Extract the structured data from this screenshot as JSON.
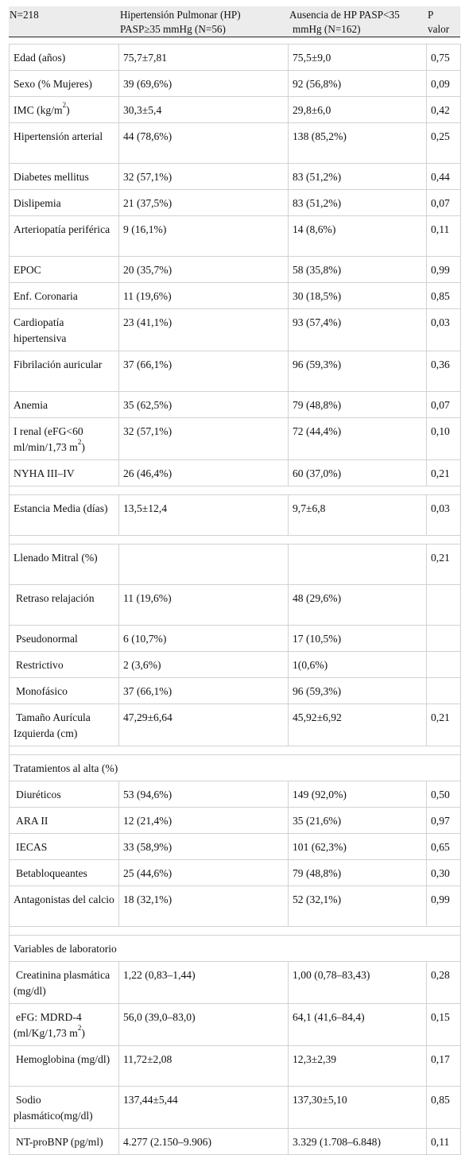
{
  "header": {
    "n": "N=218",
    "hp_line1": "Hipertensión Pulmonar (HP)",
    "hp_line2": "PASP≥35 mmHg (N=56)",
    "nohp_line1": "Ausencia de HP PASP<35",
    "nohp_line2": "mmHg (N=162)",
    "p_line1": "P",
    "p_line2": "valor"
  },
  "rows": [
    {
      "label": "Edad (años)",
      "hp": "75,7±7,81",
      "nohp": "75,5±9,0",
      "p": "0,75"
    },
    {
      "label": "Sexo (% Mujeres)",
      "hp": "39 (69,6%)",
      "nohp": "92 (56,8%)",
      "p": "0,09"
    },
    {
      "label": "IMC (kg/m",
      "sup": "2",
      "label_end": ")",
      "hp": "30,3±5,4",
      "nohp": "29,8±6,0",
      "p": "0,42"
    },
    {
      "label": "Hipertensión arterial",
      "hp": "44 (78,6%)",
      "nohp": "138 (85,2%)",
      "p": "0,25"
    },
    {
      "label": "Diabetes mellitus",
      "hp": "32 (57,1%)",
      "nohp": "83 (51,2%)",
      "p": "0,44"
    },
    {
      "label": "Dislipemia",
      "hp": "21 (37,5%)",
      "nohp": "83 (51,2%)",
      "p": "0,07"
    },
    {
      "label": "Arteriopatía periférica",
      "hp": "9 (16,1%)",
      "nohp": "14 (8,6%)",
      "p": "0,11"
    },
    {
      "label": "EPOC",
      "hp": "20 (35,7%)",
      "nohp": "58 (35,8%)",
      "p": "0,99"
    },
    {
      "label": "Enf. Coronaria",
      "hp": "11 (19,6%)",
      "nohp": "30 (18,5%)",
      "p": "0,85"
    },
    {
      "label": "Cardiopatía hipertensiva",
      "hp": "23 (41,1%)",
      "nohp": "93 (57,4%)",
      "p": "0,03"
    },
    {
      "label": "Fibrilación auricular",
      "hp": "37 (66,1%)",
      "nohp": "96 (59,3%)",
      "p": "0,36"
    },
    {
      "label": "Anemia",
      "hp": "35 (62,5%)",
      "nohp": "79 (48,8%)",
      "p": "0,07"
    },
    {
      "label": "I renal (eFG<60 ml/min/1,73 m",
      "sup": "2",
      "label_end": ")",
      "hp": "32 (57,1%)",
      "nohp": "72 (44,4%)",
      "p": "0,10"
    },
    {
      "label": "NYHA III–IV",
      "hp": "26 (46,4%)",
      "nohp": "60 (37,0%)",
      "p": "0,21"
    },
    {
      "gap": true
    },
    {
      "label": "Estancia Media (días)",
      "hp": "13,5±12,4",
      "nohp": "9,7±6,8",
      "p": "0,03"
    },
    {
      "gap": true
    },
    {
      "label": "Llenado Mitral (%)",
      "hp": "",
      "nohp": "",
      "p": "0,21"
    },
    {
      "label": "Retraso relajación",
      "indent": true,
      "hp": "11 (19,6%)",
      "nohp": "48 (29,6%)",
      "p": ""
    },
    {
      "label": "Pseudonormal",
      "indent": true,
      "hp": "6 (10,7%)",
      "nohp": "17 (10,5%)",
      "p": ""
    },
    {
      "label": "Restrictivo",
      "indent": true,
      "hp": "2 (3,6%)",
      "nohp": "1(0,6%)",
      "p": ""
    },
    {
      "label": "Monofásico",
      "indent": true,
      "hp": "37 (66,1%)",
      "nohp": "96 (59,3%)",
      "p": ""
    },
    {
      "label": "Tamaño Aurícula Izquierda (cm)",
      "indent": true,
      "hp": "47,29±6,64",
      "nohp": "45,92±6,92",
      "p": "0,21"
    },
    {
      "gap": true
    },
    {
      "section": "Tratamientos al alta (%)"
    },
    {
      "label": "Diuréticos",
      "indent": true,
      "hp": "53 (94,6%)",
      "nohp": "149 (92,0%)",
      "p": "0,50"
    },
    {
      "label": "ARA II",
      "indent": true,
      "hp": "12 (21,4%)",
      "nohp": "35 (21,6%)",
      "p": "0,97"
    },
    {
      "label": "IECAS",
      "indent": true,
      "hp": "33 (58,9%)",
      "nohp": "101 (62,3%)",
      "p": "0,65"
    },
    {
      "label": "Betabloqueantes",
      "indent": true,
      "hp": "25 (44,6%)",
      "nohp": "79 (48,8%)",
      "p": "0,30"
    },
    {
      "label": "Antagonistas del calcio",
      "hp": "18 (32,1%)",
      "nohp": "52 (32,1%)",
      "p": "0,99"
    },
    {
      "gap": true
    },
    {
      "section": "Variables de laboratorio"
    },
    {
      "label": "Creatinina plasmática (mg/dl)",
      "indent": true,
      "hp": "1,22 (0,83–1,44)",
      "nohp": "1,00 (0,78–83,43)",
      "p": "0,28"
    },
    {
      "label": "eFG: MDRD-4 (ml/Kg/1,73 m",
      "sup": "2",
      "label_end": ")",
      "indent": true,
      "hp": "56,0 (39,0–83,0)",
      "nohp": "64,1 (41,6–84,4)",
      "p": "0,15"
    },
    {
      "label": "Hemoglobina (mg/dl)",
      "indent": true,
      "hp": "11,72±2,08",
      "nohp": "12,3±2,39",
      "p": "0,17"
    },
    {
      "label": "Sodio plasmático(mg/dl)",
      "indent": true,
      "hp": "137,44±5,44",
      "nohp": "137,30±5,10",
      "p": "0,85"
    },
    {
      "label": "NT-proBNP (pg/ml)",
      "indent": true,
      "hp": "4.277 (2.150–9.906)",
      "nohp": "3.329 (1.708–6.848)",
      "p": "0,11"
    }
  ]
}
